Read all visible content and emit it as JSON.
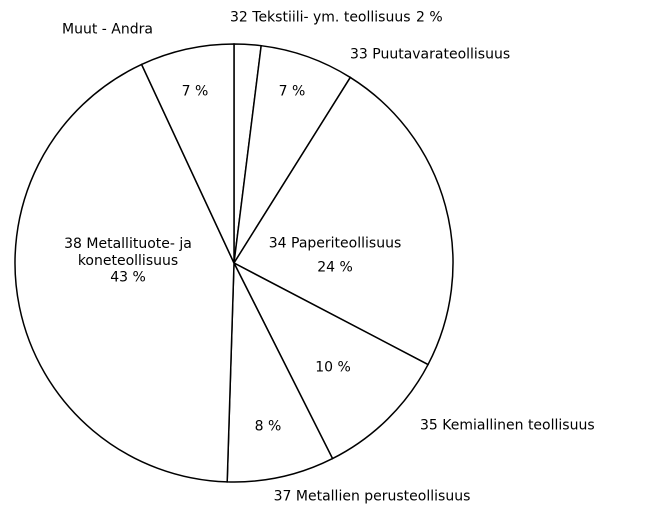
{
  "chart_data": {
    "type": "pie",
    "categories": [
      "32 Tekstiili- ym. teollisuus",
      "33 Puutavarateollisuus",
      "34 Paperiteollisuus",
      "35 Kemiallinen teollisuus",
      "37 Metallien perusteollisuus",
      "38 Metallituote- ja koneteollisuus",
      "Muut - Andra"
    ],
    "values": [
      2,
      7,
      24,
      10,
      8,
      43,
      7
    ],
    "value_labels": [
      "2 %",
      "7 %",
      "24 %",
      "10 %",
      "8 %",
      "43 %",
      "7 %"
    ],
    "color": "#ffffff"
  }
}
